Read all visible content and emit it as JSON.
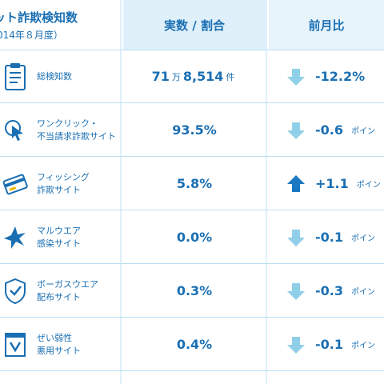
{
  "header": {
    "title_line1": "ット詐欺検知数",
    "title_line2": "014年８月度）",
    "col_value": "実数 / 割合",
    "col_compare": "前月比"
  },
  "colors": {
    "text_blue": "#1a6fb3",
    "header_bg": "#dff0fb",
    "arrow_down": "#8fd0e8",
    "arrow_up": "#1a78c2"
  },
  "rows": [
    {
      "label_line1": "総検知数",
      "label_line2": "",
      "value_main": "71",
      "value_unit1": "万",
      "value_rest": "8,514",
      "value_unit2": "件",
      "change": "-12.2%",
      "change_unit": "",
      "direction": "down",
      "icon": "clipboard-list-icon"
    },
    {
      "label_line1": "ワンクリック・",
      "label_line2": "不当請求詐欺サイト",
      "value_main": "93.5%",
      "value_unit1": "",
      "value_rest": "",
      "value_unit2": "",
      "change": "-0.6",
      "change_unit": "ポイン",
      "direction": "down",
      "icon": "cursor-click-icon"
    },
    {
      "label_line1": "フィッシング",
      "label_line2": "詐欺サイト",
      "value_main": "5.8%",
      "value_unit1": "",
      "value_rest": "",
      "value_unit2": "",
      "change": "+1.1",
      "change_unit": "ポイン",
      "direction": "up",
      "icon": "credit-card-hook-icon"
    },
    {
      "label_line1": "マルウエア",
      "label_line2": "感染サイト",
      "value_main": "0.0%",
      "value_unit1": "",
      "value_rest": "",
      "value_unit2": "",
      "change": "-0.1",
      "change_unit": "ポイン",
      "direction": "down",
      "icon": "virus-star-icon"
    },
    {
      "label_line1": "ボーガスウエア",
      "label_line2": "配布サイト",
      "value_main": "0.3%",
      "value_unit1": "",
      "value_rest": "",
      "value_unit2": "",
      "change": "-0.3",
      "change_unit": "ポイン",
      "direction": "down",
      "icon": "bogus-shield-icon"
    },
    {
      "label_line1": "ぜい弱性",
      "label_line2": "悪用サイト",
      "value_main": "0.4%",
      "value_unit1": "",
      "value_rest": "",
      "value_unit2": "",
      "change": "-0.1",
      "change_unit": "ポイン",
      "direction": "down",
      "icon": "vulnerability-window-icon"
    }
  ]
}
